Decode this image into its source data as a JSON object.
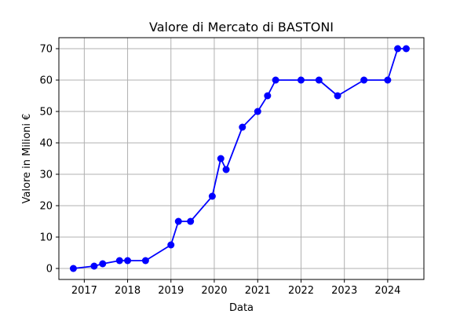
{
  "chart_data": {
    "type": "line",
    "title": "Valore di Mercato di BASTONI",
    "xlabel": "Data",
    "ylabel": "Valore in Milioni €",
    "x_axis_type": "date",
    "xlim": [
      "2016-06-01",
      "2024-11-01"
    ],
    "ylim": [
      -3.5,
      73.5
    ],
    "x_ticks": [
      "2017-01-01",
      "2018-01-01",
      "2019-01-01",
      "2020-01-01",
      "2021-01-01",
      "2022-01-01",
      "2023-01-01",
      "2024-01-01"
    ],
    "x_tick_labels": [
      "2017",
      "2018",
      "2019",
      "2020",
      "2021",
      "2022",
      "2023",
      "2024"
    ],
    "y_ticks": [
      0,
      10,
      20,
      30,
      40,
      50,
      60,
      70
    ],
    "y_tick_labels": [
      "0",
      "10",
      "20",
      "30",
      "40",
      "50",
      "60",
      "70"
    ],
    "grid": true,
    "series": [
      {
        "color": "#0000ff",
        "marker": "circle",
        "points": [
          {
            "x": "2016-10-01",
            "y": 0
          },
          {
            "x": "2017-03-25",
            "y": 0.75
          },
          {
            "x": "2017-06-05",
            "y": 1.5
          },
          {
            "x": "2017-10-25",
            "y": 2.5
          },
          {
            "x": "2018-01-01",
            "y": 2.5
          },
          {
            "x": "2018-06-01",
            "y": 2.5
          },
          {
            "x": "2019-01-01",
            "y": 7.5
          },
          {
            "x": "2019-03-05",
            "y": 15
          },
          {
            "x": "2019-06-15",
            "y": 15
          },
          {
            "x": "2019-12-15",
            "y": 23
          },
          {
            "x": "2020-02-25",
            "y": 35
          },
          {
            "x": "2020-04-10",
            "y": 31.5
          },
          {
            "x": "2020-08-25",
            "y": 45
          },
          {
            "x": "2021-01-01",
            "y": 50
          },
          {
            "x": "2021-03-25",
            "y": 55
          },
          {
            "x": "2021-06-01",
            "y": 60
          },
          {
            "x": "2022-01-01",
            "y": 60
          },
          {
            "x": "2022-06-01",
            "y": 60
          },
          {
            "x": "2022-11-05",
            "y": 55
          },
          {
            "x": "2023-06-15",
            "y": 60
          },
          {
            "x": "2024-01-01",
            "y": 60
          },
          {
            "x": "2024-03-25",
            "y": 70
          },
          {
            "x": "2024-06-05",
            "y": 70
          }
        ]
      }
    ]
  }
}
